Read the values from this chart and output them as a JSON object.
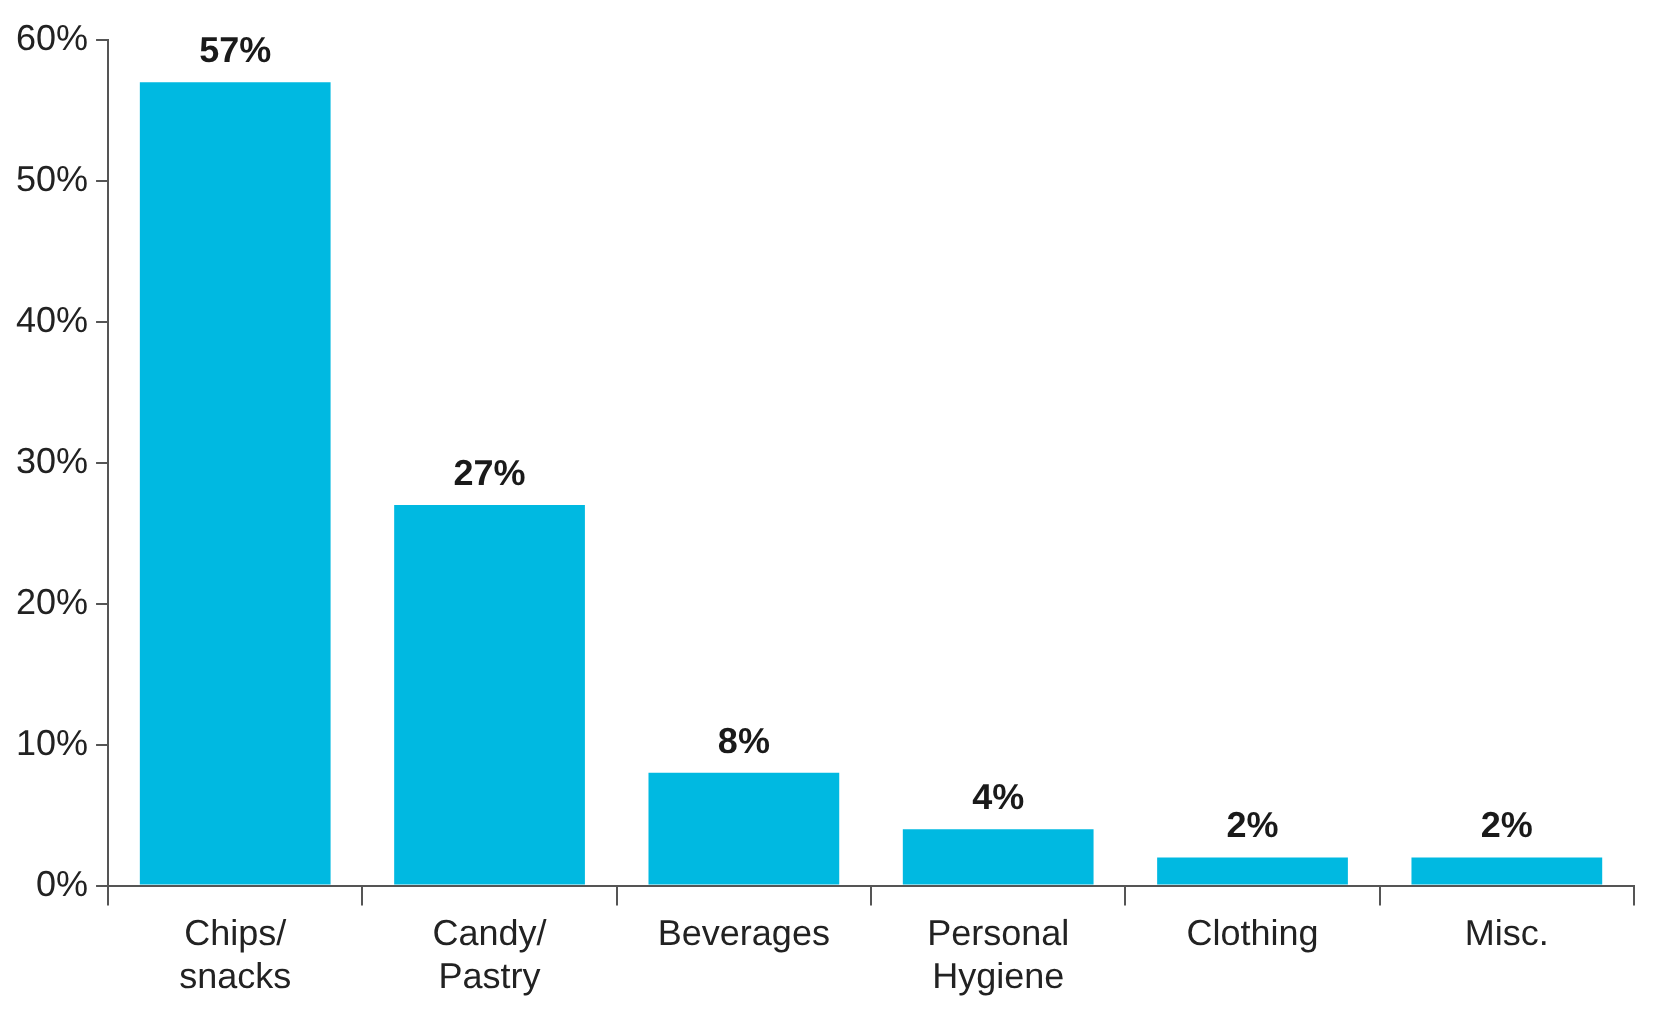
{
  "chart_data": {
    "type": "bar",
    "categories": [
      "Chips/ snacks",
      "Candy/ Pastry",
      "Beverages",
      "Personal Hygiene",
      "Clothing",
      "Misc."
    ],
    "values": [
      57,
      27,
      8,
      4,
      2,
      2
    ],
    "color": "#00b9e1",
    "ylim": [
      0,
      60
    ],
    "yticks": [
      {
        "value": 0,
        "label": "0%"
      },
      {
        "value": 10,
        "label": "10%"
      },
      {
        "value": 20,
        "label": "20%"
      },
      {
        "value": 30,
        "label": "30%"
      },
      {
        "value": 40,
        "label": "40%"
      },
      {
        "value": 50,
        "label": "50%"
      },
      {
        "value": 60,
        "label": "60%"
      }
    ],
    "value_labels": [
      "57%",
      "27%",
      "8%",
      "4%",
      "2%",
      "2%"
    ],
    "grid": false,
    "legend": false
  }
}
